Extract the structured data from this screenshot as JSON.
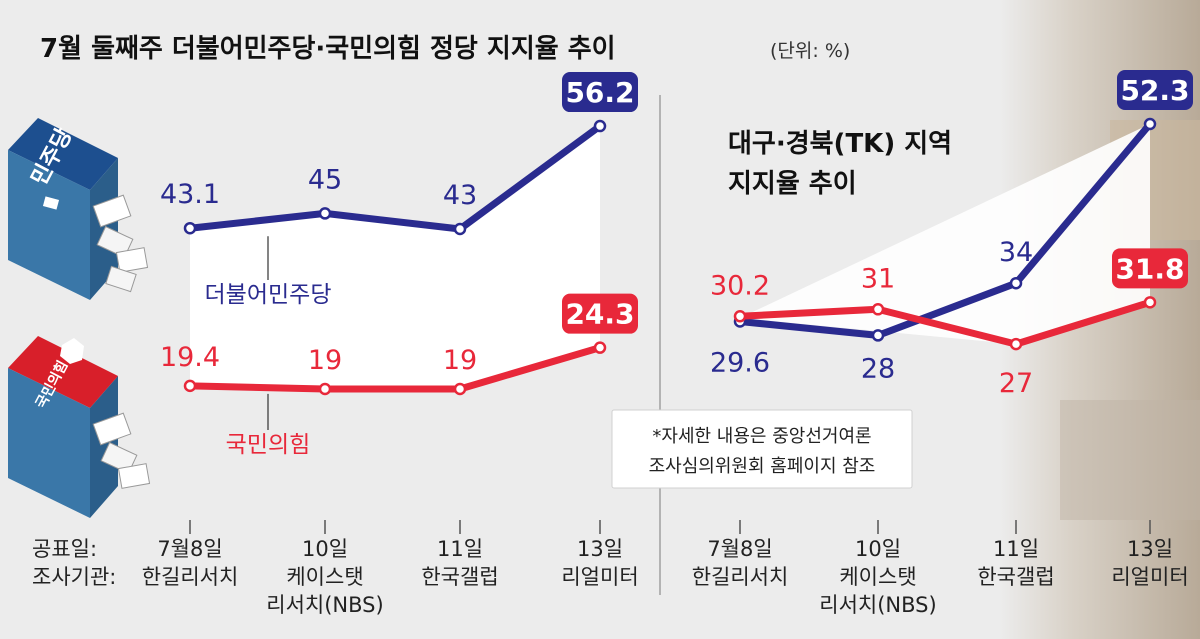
{
  "title": "7월 둘째주 더불어민주당·국민의힘 정당 지지율 추이",
  "unit": "(단위: %)",
  "row_labels": {
    "date": "공표일:",
    "pollster": "조사기관:"
  },
  "logos": {
    "democratic": "민주당",
    "ppp": "국민의힘"
  },
  "note": [
    "*자세한 내용은 중앙선거여론",
    "조사심의위원회 홈페이지 참조"
  ],
  "colors": {
    "democratic": "#2a2b8f",
    "ppp": "#e8283a"
  },
  "chart_data": [
    {
      "type": "line",
      "title": "",
      "categories": [
        "7월8일|한길리서치",
        "10일|케이스탯|리서치(NBS)",
        "11일|한국갤럽",
        "13일|리얼미터"
      ],
      "series": [
        {
          "name": "더불어민주당",
          "values": [
            43.1,
            45,
            43,
            56.2
          ],
          "labels": [
            "43.1",
            "45",
            "43",
            "56.2"
          ]
        },
        {
          "name": "국민의힘",
          "values": [
            19.4,
            19,
            19,
            24.3
          ],
          "labels": [
            "19.4",
            "19",
            "19",
            "24.3"
          ]
        }
      ]
    },
    {
      "type": "line",
      "title": "대구·경북(TK) 지역|지지율 추이",
      "categories": [
        "7월8일|한길리서치",
        "10일|케이스탯|리서치(NBS)",
        "11일|한국갤럽",
        "13일|리얼미터"
      ],
      "series": [
        {
          "name": "더불어민주당",
          "values": [
            29.6,
            28,
            34,
            52.3
          ],
          "labels": [
            "29.6",
            "28",
            "34",
            "52.3"
          ]
        },
        {
          "name": "국민의힘",
          "values": [
            30.2,
            31,
            27,
            31.8
          ],
          "labels": [
            "30.2",
            "31",
            "27",
            "31.8"
          ]
        }
      ]
    }
  ]
}
